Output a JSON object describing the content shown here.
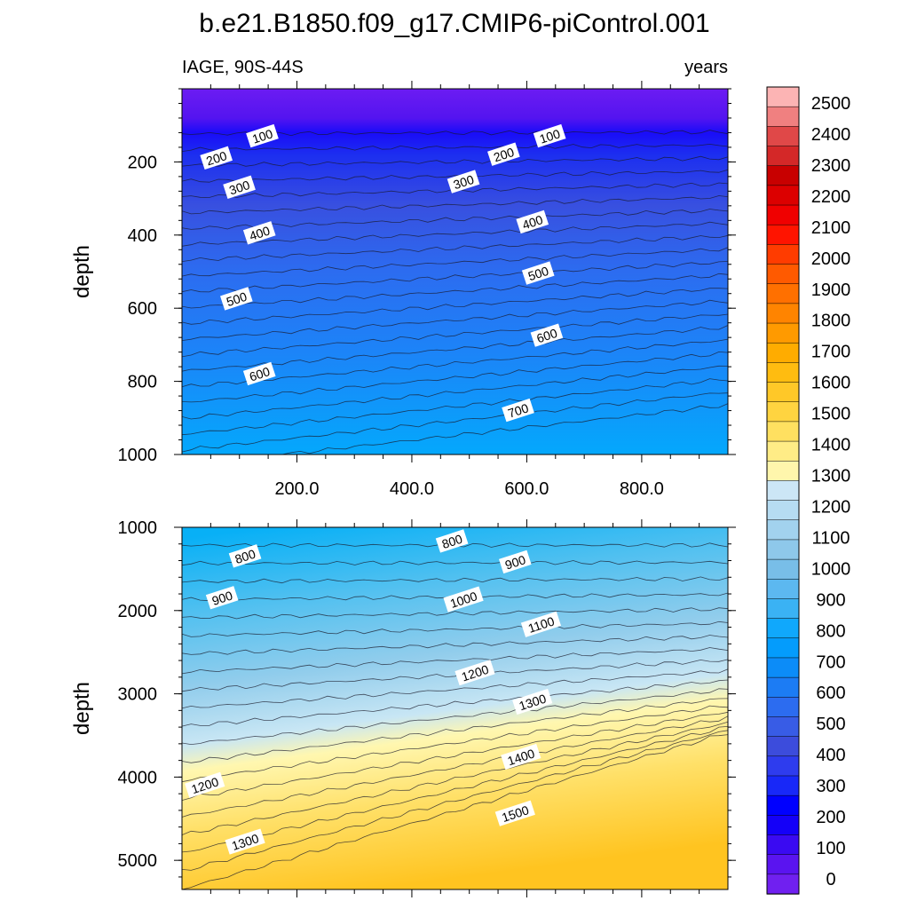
{
  "figure_title": "b.e21.B1850.f09_g17.CMIP6-piControl.001",
  "chart_data": [
    {
      "type": "heatmap",
      "panel": "upper",
      "left_label": "IAGE, 90S-44S",
      "right_label": "years",
      "xlabel": "",
      "ylabel": "depth",
      "xlim": [
        0,
        950
      ],
      "ylim": [
        1000,
        0
      ],
      "y_ticks": [
        200,
        400,
        600,
        800,
        1000
      ],
      "y_tick_labels": [
        "200",
        "400",
        "600",
        "800",
        "1000"
      ],
      "x_ticks": [
        200,
        400,
        600,
        800
      ],
      "x_tick_labels": [
        "200.0",
        "400.0",
        "600.0",
        "800.0"
      ],
      "contour_labels": [
        {
          "text": "100",
          "x": 140,
          "y": 130
        },
        {
          "text": "100",
          "x": 640,
          "y": 130
        },
        {
          "text": "200",
          "x": 60,
          "y": 190
        },
        {
          "text": "200",
          "x": 560,
          "y": 180
        },
        {
          "text": "300",
          "x": 100,
          "y": 270
        },
        {
          "text": "300",
          "x": 490,
          "y": 255
        },
        {
          "text": "400",
          "x": 135,
          "y": 395
        },
        {
          "text": "400",
          "x": 610,
          "y": 365
        },
        {
          "text": "500",
          "x": 95,
          "y": 575
        },
        {
          "text": "500",
          "x": 620,
          "y": 505
        },
        {
          "text": "600",
          "x": 135,
          "y": 780
        },
        {
          "text": "600",
          "x": 635,
          "y": 675
        },
        {
          "text": "700",
          "x": 585,
          "y": 880
        }
      ]
    },
    {
      "type": "heatmap",
      "panel": "lower",
      "xlabel": "",
      "ylabel": "depth",
      "xlim": [
        0,
        950
      ],
      "ylim": [
        5350,
        1000
      ],
      "y_ticks": [
        1000,
        2000,
        3000,
        4000,
        5000
      ],
      "y_tick_labels": [
        "1000",
        "2000",
        "3000",
        "4000",
        "5000"
      ],
      "contour_labels": [
        {
          "text": "800",
          "x": 110,
          "y": 1350
        },
        {
          "text": "800",
          "x": 470,
          "y": 1170
        },
        {
          "text": "900",
          "x": 70,
          "y": 1850
        },
        {
          "text": "900",
          "x": 580,
          "y": 1420
        },
        {
          "text": "1000",
          "x": 490,
          "y": 1870
        },
        {
          "text": "1100",
          "x": 625,
          "y": 2170
        },
        {
          "text": "1200",
          "x": 510,
          "y": 2750
        },
        {
          "text": "1200",
          "x": 40,
          "y": 4100
        },
        {
          "text": "1300",
          "x": 610,
          "y": 3100
        },
        {
          "text": "1300",
          "x": 110,
          "y": 4780
        },
        {
          "text": "1400",
          "x": 590,
          "y": 3760
        },
        {
          "text": "1500",
          "x": 580,
          "y": 4440
        }
      ]
    }
  ],
  "colorbar": {
    "labels": [
      "2500",
      "2400",
      "2300",
      "2200",
      "2100",
      "2000",
      "1900",
      "1800",
      "1700",
      "1600",
      "1500",
      "1400",
      "1300",
      "1200",
      "1100",
      "1000",
      "900",
      "800",
      "700",
      "600",
      "500",
      "400",
      "300",
      "200",
      "100",
      "0"
    ],
    "colors": [
      "#fcb4b4",
      "#f08080",
      "#e04848",
      "#d42828",
      "#c80000",
      "#dc0000",
      "#f00000",
      "#ff1400",
      "#ff3c00",
      "#ff5a00",
      "#ff7000",
      "#ff8400",
      "#ff9a00",
      "#ffac00",
      "#ffbc10",
      "#ffc828",
      "#ffd440",
      "#ffe060",
      "#ffec86",
      "#fff6ac",
      "#cce6f6",
      "#b6dcf2",
      "#a2d2ee",
      "#8ec8ea",
      "#78bee8",
      "#5cb8f0",
      "#3ab2f4",
      "#10a8fc",
      "#049cfc",
      "#0c8cf8",
      "#1c7cf4",
      "#2c6cf0",
      "#385ce6",
      "#3c4cdc",
      "#2e3cee",
      "#1828f8",
      "#0000ff",
      "#1400f8",
      "#3a0af2",
      "#5a14f0",
      "#7020f0"
    ]
  }
}
